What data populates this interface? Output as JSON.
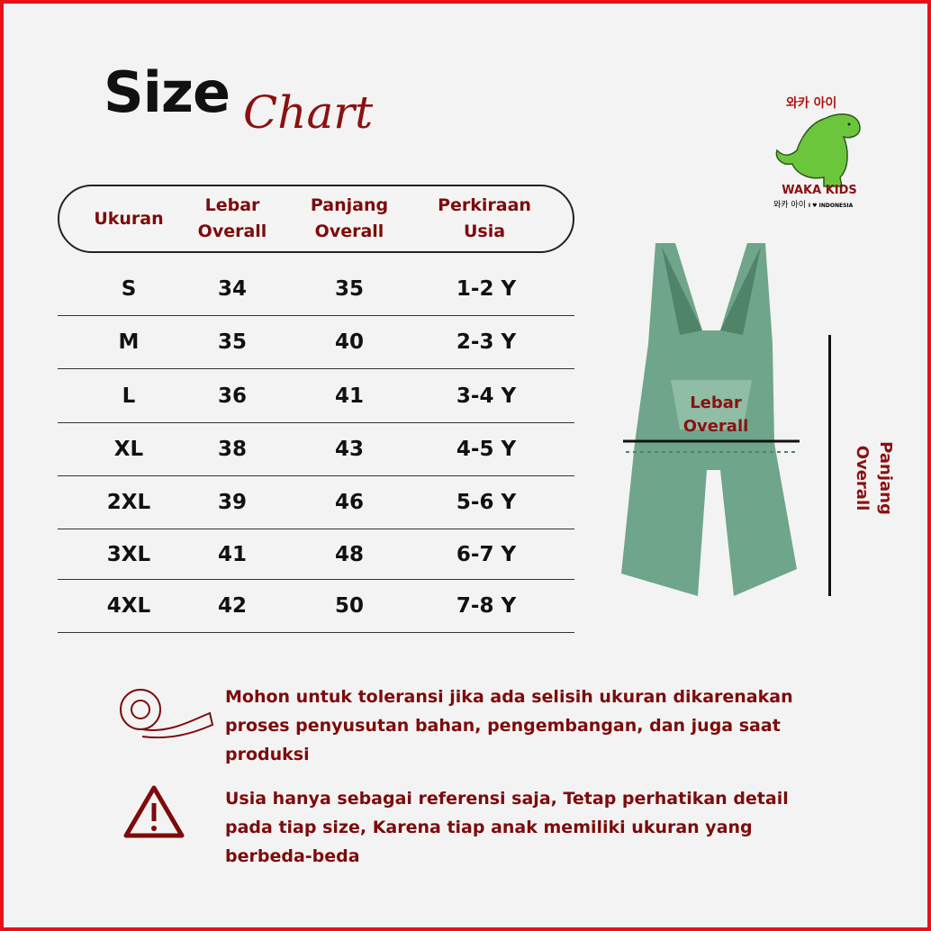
{
  "title": {
    "bold": "Size",
    "script": "Chart"
  },
  "logo": {
    "korean": "와카 아이",
    "brand": "WAKA KIDS",
    "tagline": "I ♥ INDONESIA"
  },
  "table": {
    "headers": [
      "Ukuran",
      "Lebar\nOverall",
      "Panjang\nOverall",
      "Perkiraan\nUsia"
    ],
    "rows": [
      [
        "S",
        "34",
        "35",
        "1-2 Y"
      ],
      [
        "M",
        "35",
        "40",
        "2-3 Y"
      ],
      [
        "L",
        "36",
        "41",
        "3-4 Y"
      ],
      [
        "XL",
        "38",
        "43",
        "4-5 Y"
      ],
      [
        "2XL",
        "39",
        "46",
        "5-6 Y"
      ],
      [
        "3XL",
        "41",
        "48",
        "6-7 Y"
      ],
      [
        "4XL",
        "42",
        "50",
        "7-8 Y"
      ]
    ]
  },
  "diagram": {
    "width_label": "Lebar\nOverall",
    "length_label": "Panjang\nOverall",
    "garment_color": "#6fa58a"
  },
  "notes": [
    {
      "icon": "measuring-tape-icon",
      "text": "Mohon untuk toleransi jika ada selisih ukuran dikarenakan proses penyusutan bahan, pengembangan, dan juga saat produksi"
    },
    {
      "icon": "warning-icon",
      "text": "Usia hanya sebagai referensi saja, Tetap perhatikan detail pada tiap size, Karena tiap anak memiliki ukuran yang berbeda-beda"
    }
  ],
  "colors": {
    "accent": "#7d0b0b",
    "border": "#e8111a",
    "background": "#f3f3f3"
  }
}
